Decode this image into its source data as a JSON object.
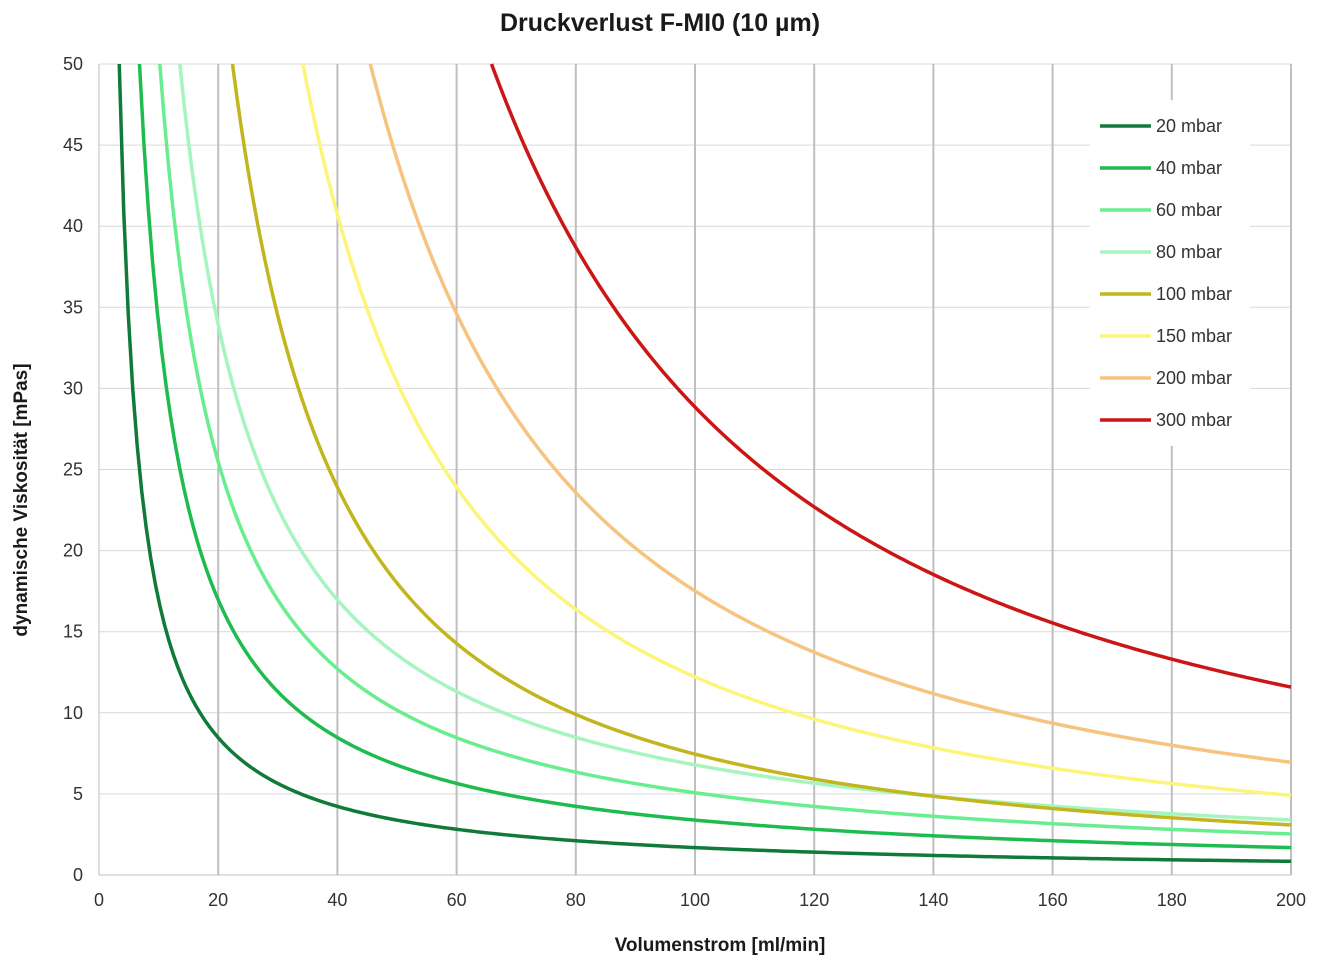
{
  "chart_data": {
    "type": "line",
    "title": "Druckverlust F-MI0 (10 µm)",
    "xlabel": "Volumenstrom [ml/min]",
    "ylabel": "dynamische Viskosität [mPas]",
    "xlim": [
      0,
      200
    ],
    "ylim": [
      0,
      50
    ],
    "x_ticks": [
      "0",
      "20",
      "40",
      "60",
      "80",
      "100",
      "120",
      "140",
      "160",
      "180",
      "200"
    ],
    "y_ticks": [
      "0",
      "5",
      "10",
      "15",
      "20",
      "25",
      "30",
      "35",
      "40",
      "45",
      "50"
    ],
    "grid": {
      "vertical": true,
      "horizontal": true
    },
    "legend_position": "top-right",
    "x": [
      4,
      5,
      6,
      8,
      10,
      12,
      15,
      20,
      25,
      30,
      35,
      40,
      50,
      60,
      70,
      80,
      100,
      120,
      140,
      160,
      180,
      200
    ],
    "series": [
      {
        "name": "20 mbar",
        "color": "#107a38",
        "values": [
          42.4,
          33.9,
          28.3,
          21.2,
          17.0,
          14.1,
          11.3,
          8.5,
          6.8,
          5.7,
          4.8,
          4.2,
          3.4,
          2.8,
          2.4,
          2.1,
          1.7,
          1.4,
          1.2,
          1.06,
          0.94,
          0.85
        ]
      },
      {
        "name": "40 mbar",
        "color": "#1ebc4f",
        "values": [
          null,
          null,
          null,
          42.4,
          33.9,
          28.3,
          22.6,
          17.0,
          13.6,
          11.3,
          9.7,
          8.5,
          6.8,
          5.7,
          4.8,
          4.2,
          3.4,
          2.8,
          2.4,
          2.1,
          1.9,
          1.7
        ]
      },
      {
        "name": "60 mbar",
        "color": "#69ee8f",
        "values": [
          null,
          null,
          null,
          null,
          null,
          42.4,
          33.9,
          25.4,
          20.3,
          17.0,
          14.5,
          12.7,
          10.2,
          8.5,
          7.3,
          6.4,
          5.1,
          4.2,
          3.6,
          3.2,
          2.8,
          2.5
        ]
      },
      {
        "name": "80 mbar",
        "color": "#a6f5bf",
        "values": [
          null,
          null,
          null,
          null,
          null,
          null,
          45.2,
          33.9,
          27.1,
          22.6,
          19.4,
          17.0,
          13.6,
          11.3,
          9.7,
          8.5,
          6.8,
          5.7,
          4.8,
          4.2,
          3.8,
          3.4
        ]
      },
      {
        "name": "100 mbar",
        "color": "#c2b61e",
        "values": [
          null,
          null,
          null,
          null,
          null,
          null,
          null,
          50.0,
          40.0,
          36.0,
          30.0,
          24.2,
          19.4,
          15.0,
          12.6,
          10.4,
          7.6,
          6.1,
          4.9,
          4.0,
          3.3,
          2.8
        ]
      },
      {
        "name": "150 mbar",
        "color": "#fdf57a",
        "values": [
          null,
          null,
          null,
          null,
          null,
          null,
          null,
          null,
          null,
          null,
          50.0,
          39.0,
          28.6,
          24.2,
          20.0,
          16.7,
          12.5,
          10.0,
          8.0,
          6.6,
          5.5,
          4.7
        ]
      },
      {
        "name": "200 mbar",
        "color": "#f7c480",
        "values": [
          null,
          null,
          null,
          null,
          null,
          null,
          null,
          null,
          null,
          null,
          null,
          null,
          44.5,
          34.0,
          28.0,
          23.3,
          17.6,
          14.2,
          11.4,
          9.4,
          7.9,
          6.8
        ]
      },
      {
        "name": "300 mbar",
        "color": "#cc1616",
        "values": [
          null,
          null,
          null,
          null,
          null,
          null,
          null,
          null,
          null,
          null,
          null,
          null,
          null,
          null,
          46.0,
          38.0,
          29.0,
          23.2,
          18.8,
          15.6,
          13.2,
          11.4
        ]
      }
    ]
  }
}
